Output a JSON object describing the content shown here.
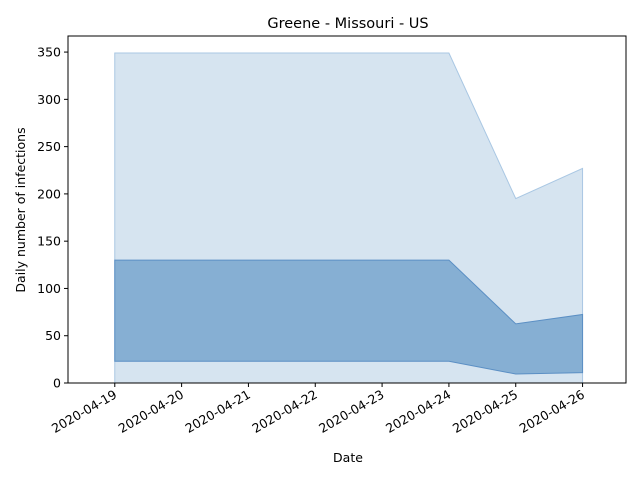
{
  "chart_data": {
    "type": "area",
    "title": "Greene - Missouri - US",
    "xlabel": "Date",
    "ylabel": "Daily number of infections",
    "x": [
      "2020-04-19",
      "2020-04-20",
      "2020-04-21",
      "2020-04-22",
      "2020-04-23",
      "2020-04-24",
      "2020-04-25",
      "2020-04-26"
    ],
    "x_ticks": [
      "2020-04-19",
      "2020-04-20",
      "2020-04-21",
      "2020-04-22",
      "2020-04-23",
      "2020-04-24",
      "2020-04-25",
      "2020-04-26"
    ],
    "y_ticks": [
      0,
      50,
      100,
      150,
      200,
      250,
      300,
      350
    ],
    "ylim": [
      0,
      367
    ],
    "xlim": [
      "2020-04-18.5",
      "2020-04-26.6"
    ],
    "grid": false,
    "legend": "none",
    "series": [
      {
        "style": "outer-band",
        "color": "#d6e4f0",
        "edge_color": "#a9c7e3",
        "lower": [
          0,
          0,
          0,
          0,
          0,
          0,
          0,
          0
        ],
        "upper": [
          349,
          349,
          349,
          349,
          349,
          349,
          195,
          227
        ]
      },
      {
        "style": "inner-band",
        "color": "#86afd3",
        "edge_color": "#5b8fc4",
        "lower": [
          23,
          23,
          23,
          23,
          23,
          23,
          9.5,
          11
        ],
        "upper": [
          130,
          130,
          130,
          130,
          130,
          130,
          62.5,
          72.5
        ]
      }
    ]
  }
}
